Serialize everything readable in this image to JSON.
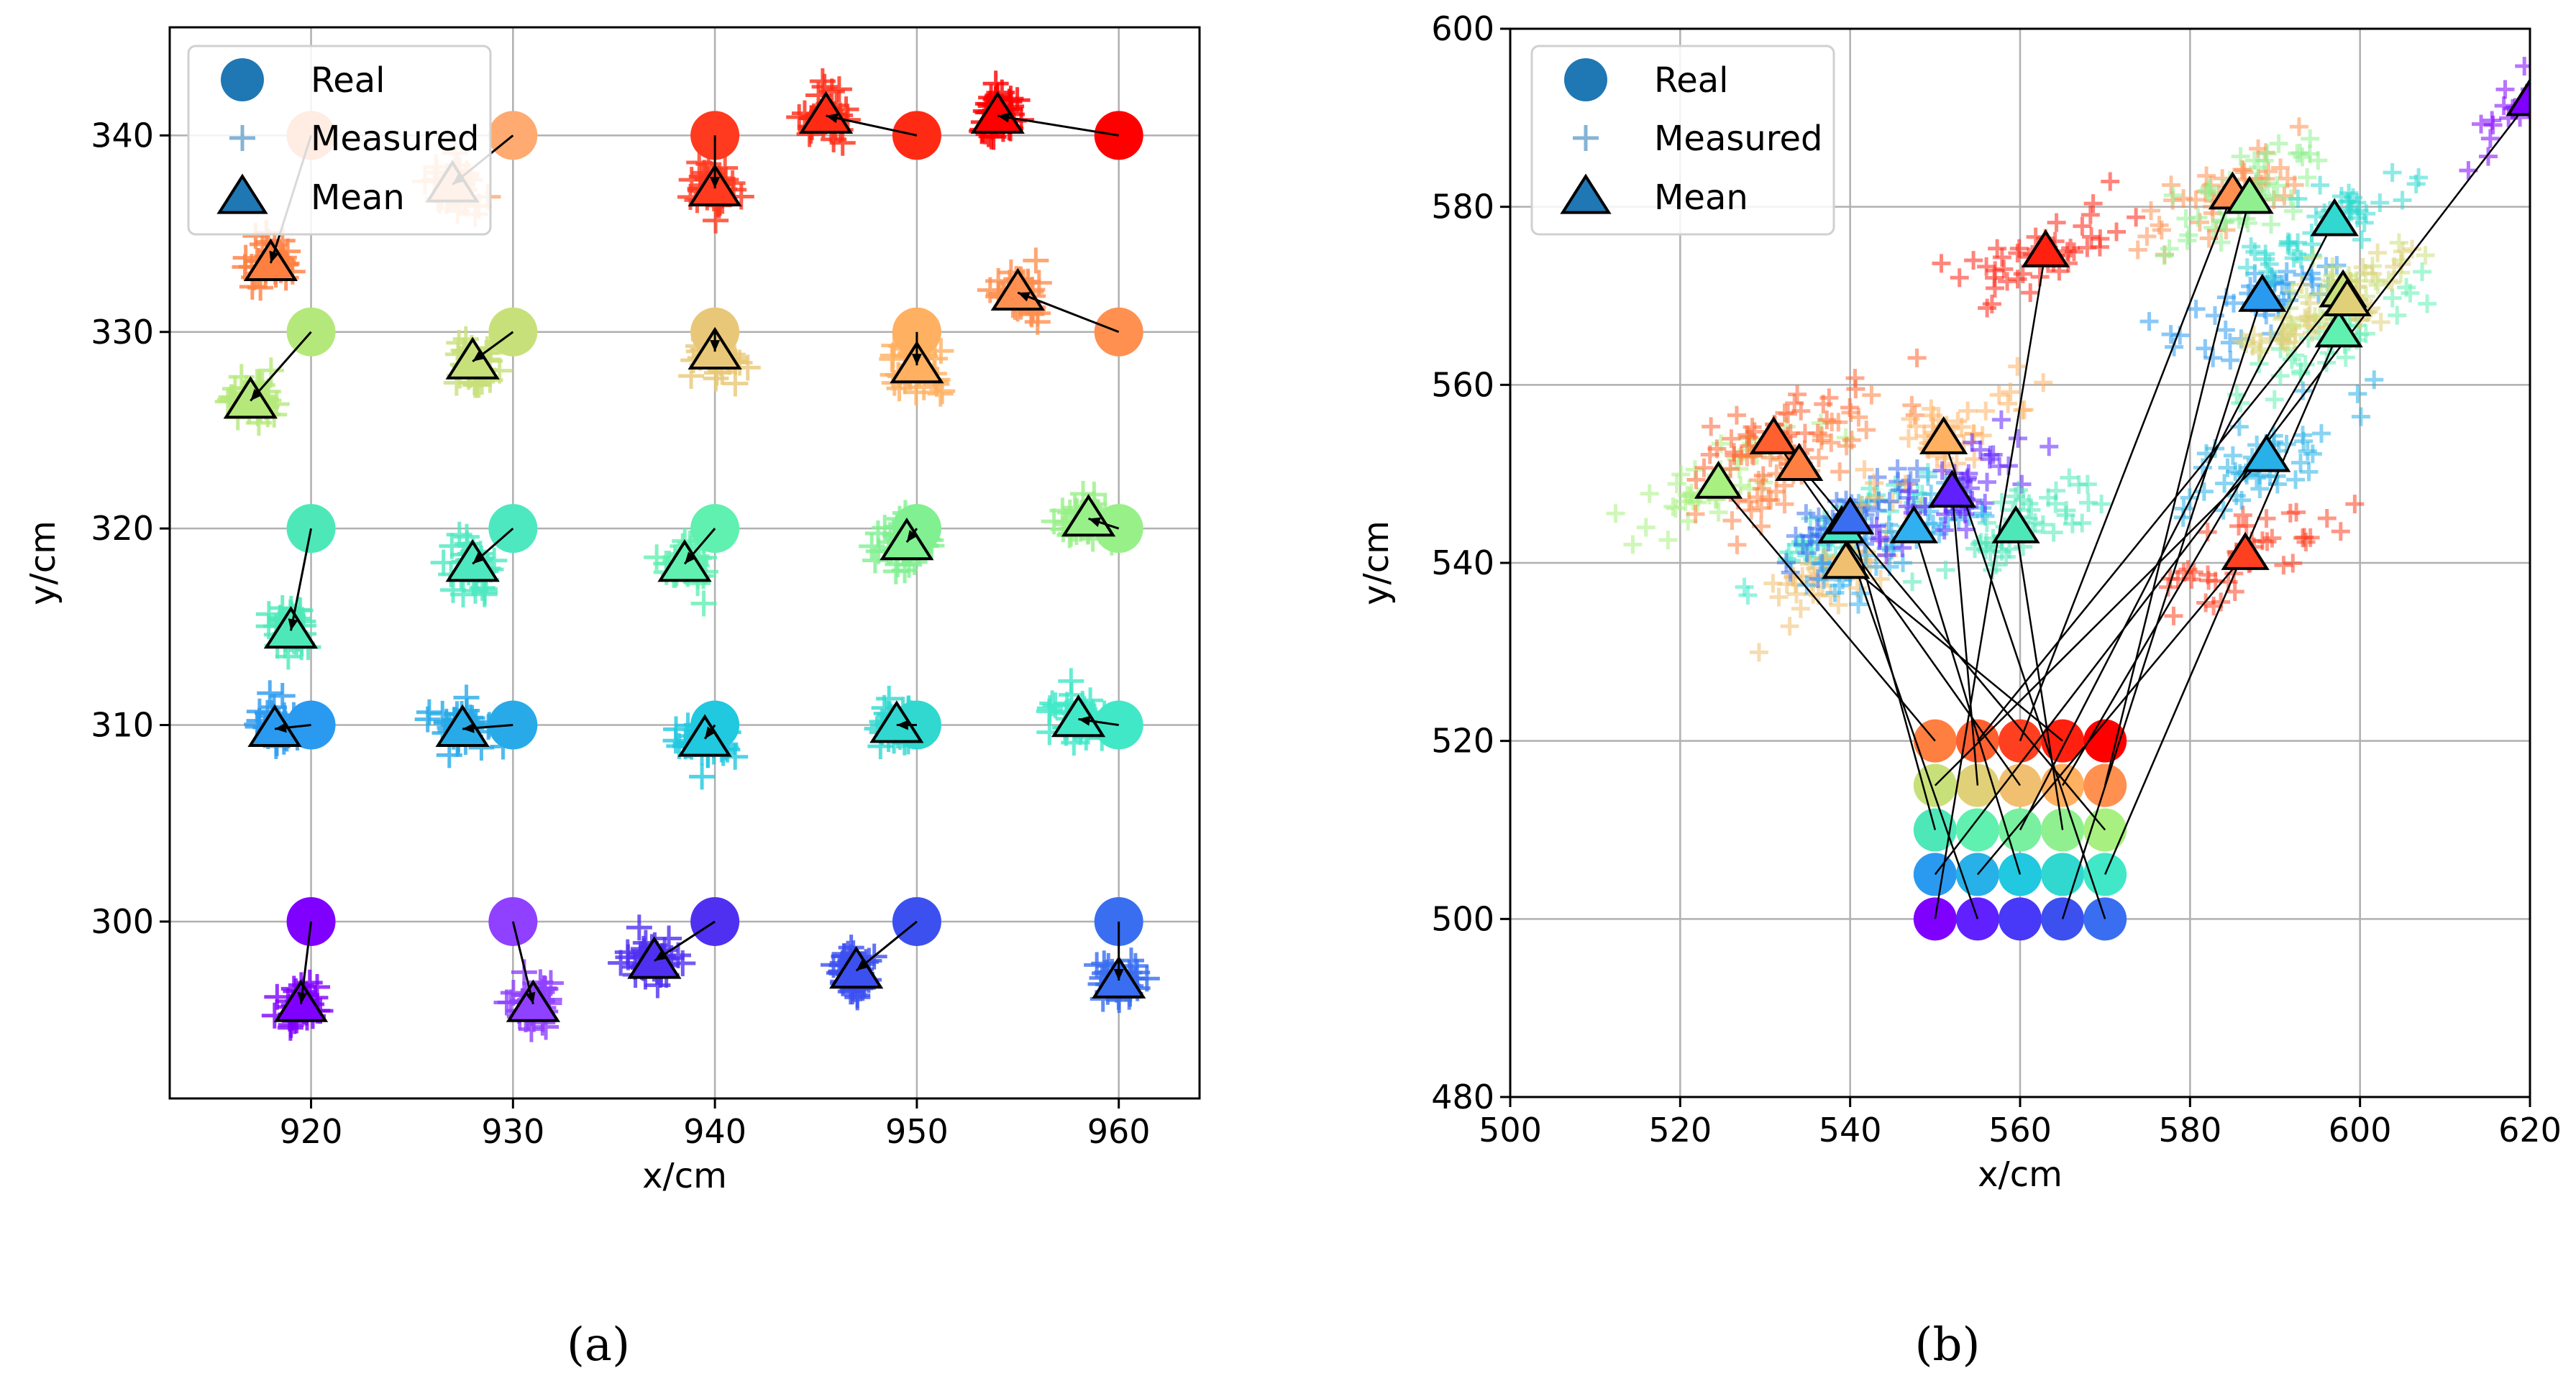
{
  "chart_data": [
    {
      "type": "scatter",
      "panel_label": "(a)",
      "xlabel": "x/cm",
      "ylabel": "y/cm",
      "xlim": [
        913,
        964
      ],
      "ylim": [
        291,
        345.5
      ],
      "xticks": [
        920,
        930,
        940,
        950,
        960
      ],
      "yticks": [
        300,
        310,
        320,
        330,
        340
      ],
      "grid": true,
      "legend": {
        "position": "top-left",
        "entries": [
          "Real",
          "Measured",
          "Mean"
        ]
      },
      "series": [
        {
          "real": [
            920,
            340
          ],
          "mean": [
            918,
            333.5
          ],
          "color": "#ff7f40"
        },
        {
          "real": [
            930,
            340
          ],
          "mean": [
            927,
            337.5
          ],
          "color": "#ffaa70"
        },
        {
          "real": [
            940,
            340
          ],
          "mean": [
            940,
            337.3
          ],
          "color": "#ff3a1f"
        },
        {
          "real": [
            950,
            340
          ],
          "mean": [
            945.5,
            341
          ],
          "color": "#ff2a14"
        },
        {
          "real": [
            960,
            340
          ],
          "mean": [
            954,
            341
          ],
          "color": "#ff0000"
        },
        {
          "real": [
            920,
            330
          ],
          "mean": [
            917,
            326.5
          ],
          "color": "#b5e87a"
        },
        {
          "real": [
            930,
            330
          ],
          "mean": [
            928,
            328.5
          ],
          "color": "#c8e07a"
        },
        {
          "real": [
            940,
            330
          ],
          "mean": [
            940,
            329
          ],
          "color": "#e8c878"
        },
        {
          "real": [
            950,
            330
          ],
          "mean": [
            950,
            328.3
          ],
          "color": "#ffb060"
        },
        {
          "real": [
            960,
            330
          ],
          "mean": [
            955,
            332
          ],
          "color": "#ff9050"
        },
        {
          "real": [
            920,
            320
          ],
          "mean": [
            919,
            314.8
          ],
          "color": "#4ee8b8"
        },
        {
          "real": [
            930,
            320
          ],
          "mean": [
            928,
            318.2
          ],
          "color": "#4ee8c0"
        },
        {
          "real": [
            940,
            320
          ],
          "mean": [
            938.5,
            318.2
          ],
          "color": "#60f0b0"
        },
        {
          "real": [
            950,
            320
          ],
          "mean": [
            949.5,
            319.3
          ],
          "color": "#80f090"
        },
        {
          "real": [
            960,
            320
          ],
          "mean": [
            958.5,
            320.5
          ],
          "color": "#98f088"
        },
        {
          "real": [
            920,
            310
          ],
          "mean": [
            918.2,
            309.8
          ],
          "color": "#2a9af0"
        },
        {
          "real": [
            930,
            310
          ],
          "mean": [
            927.5,
            309.8
          ],
          "color": "#28aae8"
        },
        {
          "real": [
            940,
            310
          ],
          "mean": [
            939.5,
            309.3
          ],
          "color": "#20c8e0"
        },
        {
          "real": [
            950,
            310
          ],
          "mean": [
            949,
            310
          ],
          "color": "#30d8d0"
        },
        {
          "real": [
            960,
            310
          ],
          "mean": [
            958,
            310.3
          ],
          "color": "#40e8c8"
        },
        {
          "real": [
            920,
            300
          ],
          "mean": [
            919.5,
            295.8
          ],
          "color": "#8000ff"
        },
        {
          "real": [
            930,
            300
          ],
          "mean": [
            931,
            295.8
          ],
          "color": "#9040ff"
        },
        {
          "real": [
            940,
            300
          ],
          "mean": [
            937,
            298
          ],
          "color": "#5030f0"
        },
        {
          "real": [
            950,
            300
          ],
          "mean": [
            947,
            297.5
          ],
          "color": "#3c50f0"
        },
        {
          "real": [
            960,
            300
          ],
          "mean": [
            960,
            297
          ],
          "color": "#3a6ef0"
        }
      ]
    },
    {
      "type": "scatter",
      "panel_label": "(b)",
      "xlabel": "x/cm",
      "ylabel": "y/cm",
      "xlim": [
        500,
        620
      ],
      "ylim": [
        480,
        600
      ],
      "xticks": [
        500,
        520,
        540,
        560,
        580,
        600,
        620
      ],
      "yticks": [
        480,
        500,
        520,
        540,
        560,
        580,
        600
      ],
      "grid": true,
      "legend": {
        "position": "top-left",
        "entries": [
          "Real",
          "Measured",
          "Mean"
        ]
      },
      "real_points": [
        {
          "x": 550,
          "y": 520,
          "color": "#ff7f40"
        },
        {
          "x": 555,
          "y": 520,
          "color": "#ff6030"
        },
        {
          "x": 560,
          "y": 520,
          "color": "#ff4020"
        },
        {
          "x": 565,
          "y": 520,
          "color": "#ff2010"
        },
        {
          "x": 570,
          "y": 520,
          "color": "#ff0000"
        },
        {
          "x": 550,
          "y": 515,
          "color": "#c8e07a"
        },
        {
          "x": 555,
          "y": 515,
          "color": "#e0d078"
        },
        {
          "x": 560,
          "y": 515,
          "color": "#f0c070"
        },
        {
          "x": 565,
          "y": 515,
          "color": "#ffb060"
        },
        {
          "x": 570,
          "y": 515,
          "color": "#ff9050"
        },
        {
          "x": 550,
          "y": 510,
          "color": "#4ee8b8"
        },
        {
          "x": 555,
          "y": 510,
          "color": "#60f0b0"
        },
        {
          "x": 560,
          "y": 510,
          "color": "#78f0a0"
        },
        {
          "x": 565,
          "y": 510,
          "color": "#90f090"
        },
        {
          "x": 570,
          "y": 510,
          "color": "#a8f080"
        },
        {
          "x": 550,
          "y": 505,
          "color": "#2a9af0"
        },
        {
          "x": 555,
          "y": 505,
          "color": "#28b0e8"
        },
        {
          "x": 560,
          "y": 505,
          "color": "#20c8e0"
        },
        {
          "x": 565,
          "y": 505,
          "color": "#30d8d0"
        },
        {
          "x": 570,
          "y": 505,
          "color": "#40e8c8"
        },
        {
          "x": 550,
          "y": 500,
          "color": "#8000ff"
        },
        {
          "x": 555,
          "y": 500,
          "color": "#6020ff"
        },
        {
          "x": 560,
          "y": 500,
          "color": "#4838f8"
        },
        {
          "x": 565,
          "y": 500,
          "color": "#3c50f0"
        },
        {
          "x": 570,
          "y": 500,
          "color": "#3a6ef0"
        }
      ],
      "mean_points": [
        {
          "x": 524.5,
          "y": 549,
          "color": "#a8f080"
        },
        {
          "x": 531,
          "y": 554,
          "color": "#ff6030"
        },
        {
          "x": 534,
          "y": 551,
          "color": "#ff7f40"
        },
        {
          "x": 539,
          "y": 544,
          "color": "#40e8c8"
        },
        {
          "x": 539.5,
          "y": 540,
          "color": "#f0c070"
        },
        {
          "x": 540,
          "y": 545,
          "color": "#3a6ef0"
        },
        {
          "x": 547.5,
          "y": 544,
          "color": "#30b0f0"
        },
        {
          "x": 551,
          "y": 554,
          "color": "#ffb060"
        },
        {
          "x": 552,
          "y": 548,
          "color": "#6020ff"
        },
        {
          "x": 559.5,
          "y": 544,
          "color": "#4ee8b8"
        },
        {
          "x": 563,
          "y": 575,
          "color": "#ff2010"
        },
        {
          "x": 585,
          "y": 581.5,
          "color": "#ff9050"
        },
        {
          "x": 587,
          "y": 581,
          "color": "#90f090"
        },
        {
          "x": 586.5,
          "y": 541,
          "color": "#ff4020"
        },
        {
          "x": 588.5,
          "y": 570,
          "color": "#2a9af0"
        },
        {
          "x": 589,
          "y": 552,
          "color": "#28b0e8"
        },
        {
          "x": 597,
          "y": 578.5,
          "color": "#30d8d0"
        },
        {
          "x": 597.5,
          "y": 566,
          "color": "#60f0b0"
        },
        {
          "x": 598,
          "y": 570.5,
          "color": "#c8e07a"
        },
        {
          "x": 598.5,
          "y": 569.5,
          "color": "#e0d078"
        },
        {
          "x": 620,
          "y": 592,
          "color": "#8000ff"
        }
      ]
    }
  ]
}
